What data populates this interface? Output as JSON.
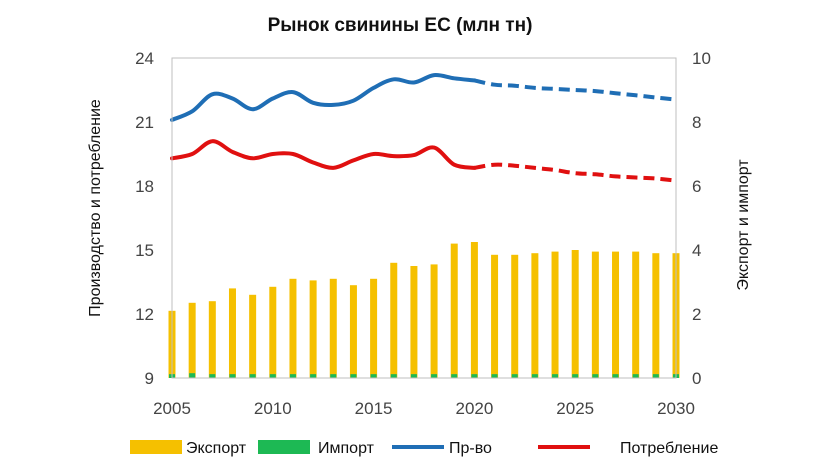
{
  "chart_data": {
    "type": "bar",
    "title": "Рынок свинины ЕС (млн тн)",
    "ylabel_left": "Производство и потребление",
    "ylabel_right": "Экспорт и импорт",
    "left_axis": {
      "min": 9,
      "max": 24,
      "ticks": [
        "9",
        "12",
        "15",
        "18",
        "21",
        "24"
      ]
    },
    "right_axis": {
      "min": 0,
      "max": 10,
      "ticks": [
        "0",
        "2",
        "4",
        "6",
        "8",
        "10"
      ]
    },
    "x_axis": {
      "min": 2005,
      "max": 2030,
      "ticks": [
        "2005",
        "2010",
        "2015",
        "2020",
        "2025",
        "2030"
      ]
    },
    "grid": false,
    "legend_position": "bottom",
    "colors": {
      "export": "#F5C000",
      "import": "#1DB954",
      "production": "#1F6EB5",
      "consumption": "#E01010"
    },
    "years": [
      2005,
      2006,
      2007,
      2008,
      2009,
      2010,
      2011,
      2012,
      2013,
      2014,
      2015,
      2016,
      2017,
      2018,
      2019,
      2020,
      2021,
      2022,
      2023,
      2024,
      2025,
      2026,
      2027,
      2028,
      2029,
      2030
    ],
    "series": [
      {
        "name": "Экспорт",
        "axis": "right",
        "kind": "bar",
        "values": [
          2.1,
          2.35,
          2.4,
          2.8,
          2.6,
          2.85,
          3.1,
          3.05,
          3.1,
          2.9,
          3.1,
          3.6,
          3.5,
          3.55,
          4.2,
          4.25,
          3.85,
          3.85,
          3.9,
          3.95,
          4.0,
          3.95,
          3.95,
          3.95,
          3.9,
          3.9
        ]
      },
      {
        "name": "Импорт",
        "axis": "right",
        "kind": "bar",
        "values": [
          0.12,
          0.15,
          0.12,
          0.12,
          0.12,
          0.12,
          0.12,
          0.12,
          0.12,
          0.12,
          0.12,
          0.12,
          0.12,
          0.12,
          0.12,
          0.12,
          0.12,
          0.12,
          0.12,
          0.12,
          0.12,
          0.12,
          0.12,
          0.12,
          0.12,
          0.12
        ]
      },
      {
        "name": "Пр-во",
        "axis": "left",
        "kind": "line",
        "forecast_from": 2020,
        "x": [
          2005,
          2006,
          2007,
          2008,
          2009,
          2010,
          2011,
          2012,
          2013,
          2014,
          2015,
          2016,
          2017,
          2018,
          2019,
          2020,
          2021,
          2022,
          2023,
          2024,
          2025,
          2026,
          2027,
          2028,
          2029,
          2030
        ],
        "values": [
          21.1,
          21.5,
          22.3,
          22.1,
          21.6,
          22.1,
          22.4,
          21.9,
          21.8,
          22.0,
          22.6,
          23.0,
          22.85,
          23.2,
          23.05,
          22.95,
          22.75,
          22.7,
          22.6,
          22.55,
          22.5,
          22.45,
          22.35,
          22.25,
          22.15,
          22.05
        ]
      },
      {
        "name": "Потребление",
        "axis": "left",
        "kind": "line",
        "forecast_from": 2020,
        "x": [
          2005,
          2006,
          2007,
          2008,
          2009,
          2010,
          2011,
          2012,
          2013,
          2014,
          2015,
          2016,
          2017,
          2018,
          2019,
          2020,
          2021,
          2022,
          2023,
          2024,
          2025,
          2026,
          2027,
          2028,
          2029,
          2030
        ],
        "values": [
          19.3,
          19.5,
          20.1,
          19.6,
          19.3,
          19.5,
          19.5,
          19.1,
          18.85,
          19.2,
          19.5,
          19.4,
          19.45,
          19.8,
          19.0,
          18.85,
          19.0,
          18.95,
          18.85,
          18.75,
          18.6,
          18.55,
          18.45,
          18.4,
          18.35,
          18.25
        ]
      }
    ]
  }
}
